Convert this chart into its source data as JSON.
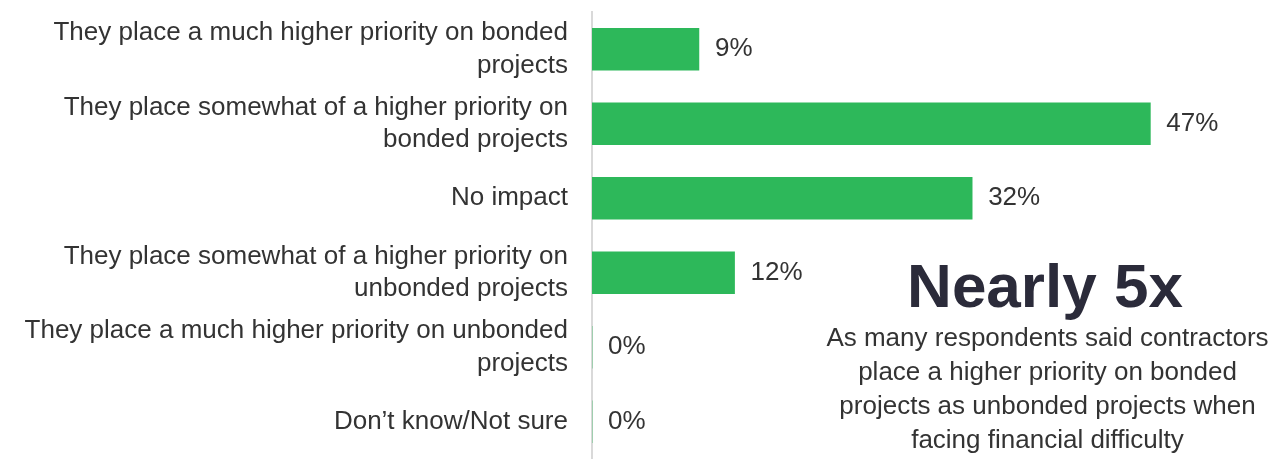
{
  "chart_data": {
    "type": "bar",
    "orientation": "horizontal",
    "categories": [
      "They place a much higher priority on bonded projects",
      "They place somewhat of a higher priority on bonded projects",
      "No impact",
      "They place somewhat of a higher priority on unbonded projects",
      "They place a much higher priority on unbonded projects",
      "Don’t know/Not sure"
    ],
    "values": [
      9,
      47,
      32,
      12,
      0,
      0
    ],
    "value_labels": [
      "9%",
      "47%",
      "32%",
      "12%",
      "0%",
      "0%"
    ],
    "color": "#2db85a",
    "tick_labels": "y",
    "legend": false,
    "annotations": [
      "Nearly 5x",
      "As many respondents said contractors place a higher priority on bonded projects as unbonded projects when facing financial difficulty"
    ]
  }
}
